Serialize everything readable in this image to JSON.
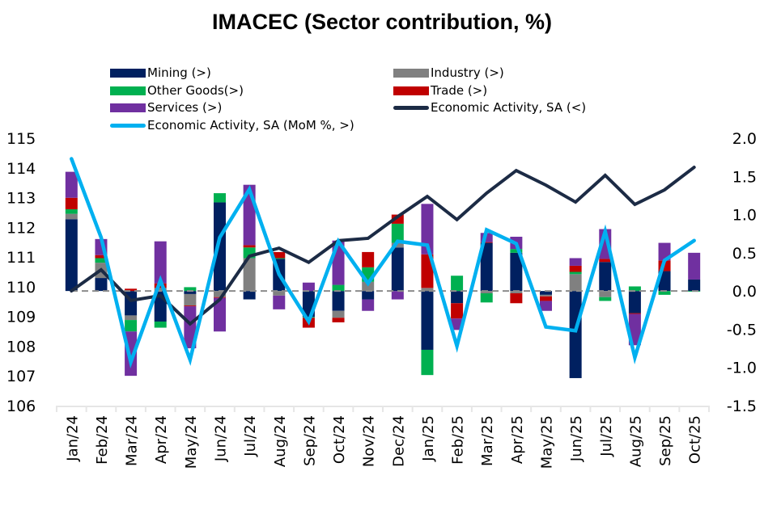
{
  "chart_data": {
    "type": "bar",
    "title": "IMACEC (Sector contribution, %)",
    "xlabel": "",
    "ylabel_left": "",
    "ylabel_right": "",
    "left_axis": {
      "ylim": [
        106,
        115
      ],
      "ticks": [
        "115",
        "114",
        "113",
        "112",
        "111",
        "110",
        "109",
        "108",
        "107",
        "106"
      ],
      "tick_values": [
        115,
        114,
        113,
        112,
        111,
        110,
        109,
        108,
        107,
        106
      ]
    },
    "right_axis": {
      "ylim": [
        -1.5,
        2.0
      ],
      "ticks": [
        "2.0",
        "1.5",
        "1.0",
        "0.5",
        "0.0",
        "-0.5",
        "-1.0",
        "-1.5"
      ],
      "tick_values": [
        2.0,
        1.5,
        1.0,
        0.5,
        0.0,
        -0.5,
        -1.0,
        -1.5
      ]
    },
    "grid": false,
    "legend_position": "top",
    "categories": [
      "Jan/24",
      "Feb/24",
      "Mar/24",
      "Apr/24",
      "May/24",
      "Jun/24",
      "Jul/24",
      "Aug/24",
      "Sep/24",
      "Oct/24",
      "Nov/24",
      "Dec/24",
      "Jan/25",
      "Feb/25",
      "Mar/25",
      "Apr/25",
      "May/25",
      "Jun/25",
      "Jul/25",
      "Aug/25",
      "Sep/25",
      "Oct/25"
    ],
    "series": [
      {
        "name": "Mining (>)",
        "type": "stacked-bar",
        "axis": "right",
        "color": "#002060",
        "values": [
          0.94,
          0.17,
          -0.32,
          -0.4,
          -0.04,
          1.16,
          -0.11,
          0.42,
          -0.34,
          -0.26,
          -0.11,
          0.57,
          -0.77,
          -0.16,
          0.63,
          0.5,
          -0.05,
          -1.14,
          0.38,
          -0.29,
          0.26,
          0.15
        ]
      },
      {
        "name": "Industry (>)",
        "type": "stacked-bar",
        "axis": "right",
        "color": "#808080",
        "values": [
          0.07,
          0.2,
          -0.06,
          0.04,
          -0.15,
          -0.08,
          0.43,
          -0.06,
          0.0,
          -0.09,
          0.12,
          0.06,
          0.04,
          0.0,
          -0.03,
          -0.03,
          -0.02,
          0.22,
          -0.08,
          0.0,
          0.0,
          0.0
        ]
      },
      {
        "name": "Other Goods(>)",
        "type": "stacked-bar",
        "axis": "right",
        "color": "#00B050",
        "values": [
          0.06,
          0.06,
          -0.15,
          -0.08,
          0.05,
          0.12,
          0.14,
          0.01,
          -0.01,
          0.08,
          0.19,
          0.25,
          -0.33,
          0.2,
          -0.12,
          0.05,
          0.0,
          0.03,
          -0.05,
          0.06,
          -0.05,
          -0.01
        ]
      },
      {
        "name": "Trade (>)",
        "type": "stacked-bar",
        "axis": "right",
        "color": "#C00000",
        "values": [
          0.15,
          0.04,
          0.03,
          0.06,
          -0.01,
          -0.01,
          0.03,
          0.08,
          -0.13,
          -0.06,
          0.2,
          0.12,
          0.44,
          -0.2,
          0.01,
          -0.13,
          -0.06,
          0.08,
          0.04,
          -0.01,
          0.14,
          0.0
        ]
      },
      {
        "name": "Services (>)",
        "type": "stacked-bar",
        "axis": "right",
        "color": "#7030A0",
        "values": [
          0.34,
          0.21,
          -0.58,
          0.55,
          -0.55,
          -0.44,
          0.79,
          -0.18,
          0.11,
          0.58,
          -0.15,
          -0.11,
          0.66,
          -0.15,
          0.12,
          0.16,
          -0.13,
          0.1,
          0.39,
          -0.41,
          0.23,
          0.35
        ]
      },
      {
        "name": "Economic Activity, SA (<)",
        "type": "line",
        "axis": "left",
        "color": "#1C2B45",
        "values": [
          109.86,
          110.57,
          109.54,
          109.7,
          108.75,
          109.57,
          111.03,
          111.3,
          110.82,
          111.55,
          111.63,
          112.36,
          113.04,
          112.26,
          113.15,
          113.91,
          113.42,
          112.85,
          113.75,
          112.77,
          113.26,
          114.02
        ]
      },
      {
        "name": "Economic Activity, SA (MoM %, >)",
        "type": "line",
        "axis": "right",
        "color": "#00B0F0",
        "values": [
          1.73,
          0.7,
          -0.93,
          0.14,
          -0.9,
          0.7,
          1.33,
          0.22,
          -0.4,
          0.65,
          0.1,
          0.65,
          0.6,
          -0.72,
          0.8,
          0.62,
          -0.47,
          -0.52,
          0.78,
          -0.87,
          0.4,
          0.66
        ]
      }
    ]
  },
  "legend": [
    {
      "label": "Mining (>)",
      "color": "#002060",
      "kind": "box"
    },
    {
      "label": "Industry (>)",
      "color": "#808080",
      "kind": "box"
    },
    {
      "label": "Other Goods(>)",
      "color": "#00B050",
      "kind": "box"
    },
    {
      "label": "Trade (>)",
      "color": "#C00000",
      "kind": "box"
    },
    {
      "label": "Services (>)",
      "color": "#7030A0",
      "kind": "box"
    },
    {
      "label": "Economic Activity, SA (<)",
      "color": "#1C2B45",
      "kind": "line"
    },
    {
      "label": "Economic Activity, SA (MoM %, >)",
      "color": "#00B0F0",
      "kind": "line"
    }
  ]
}
